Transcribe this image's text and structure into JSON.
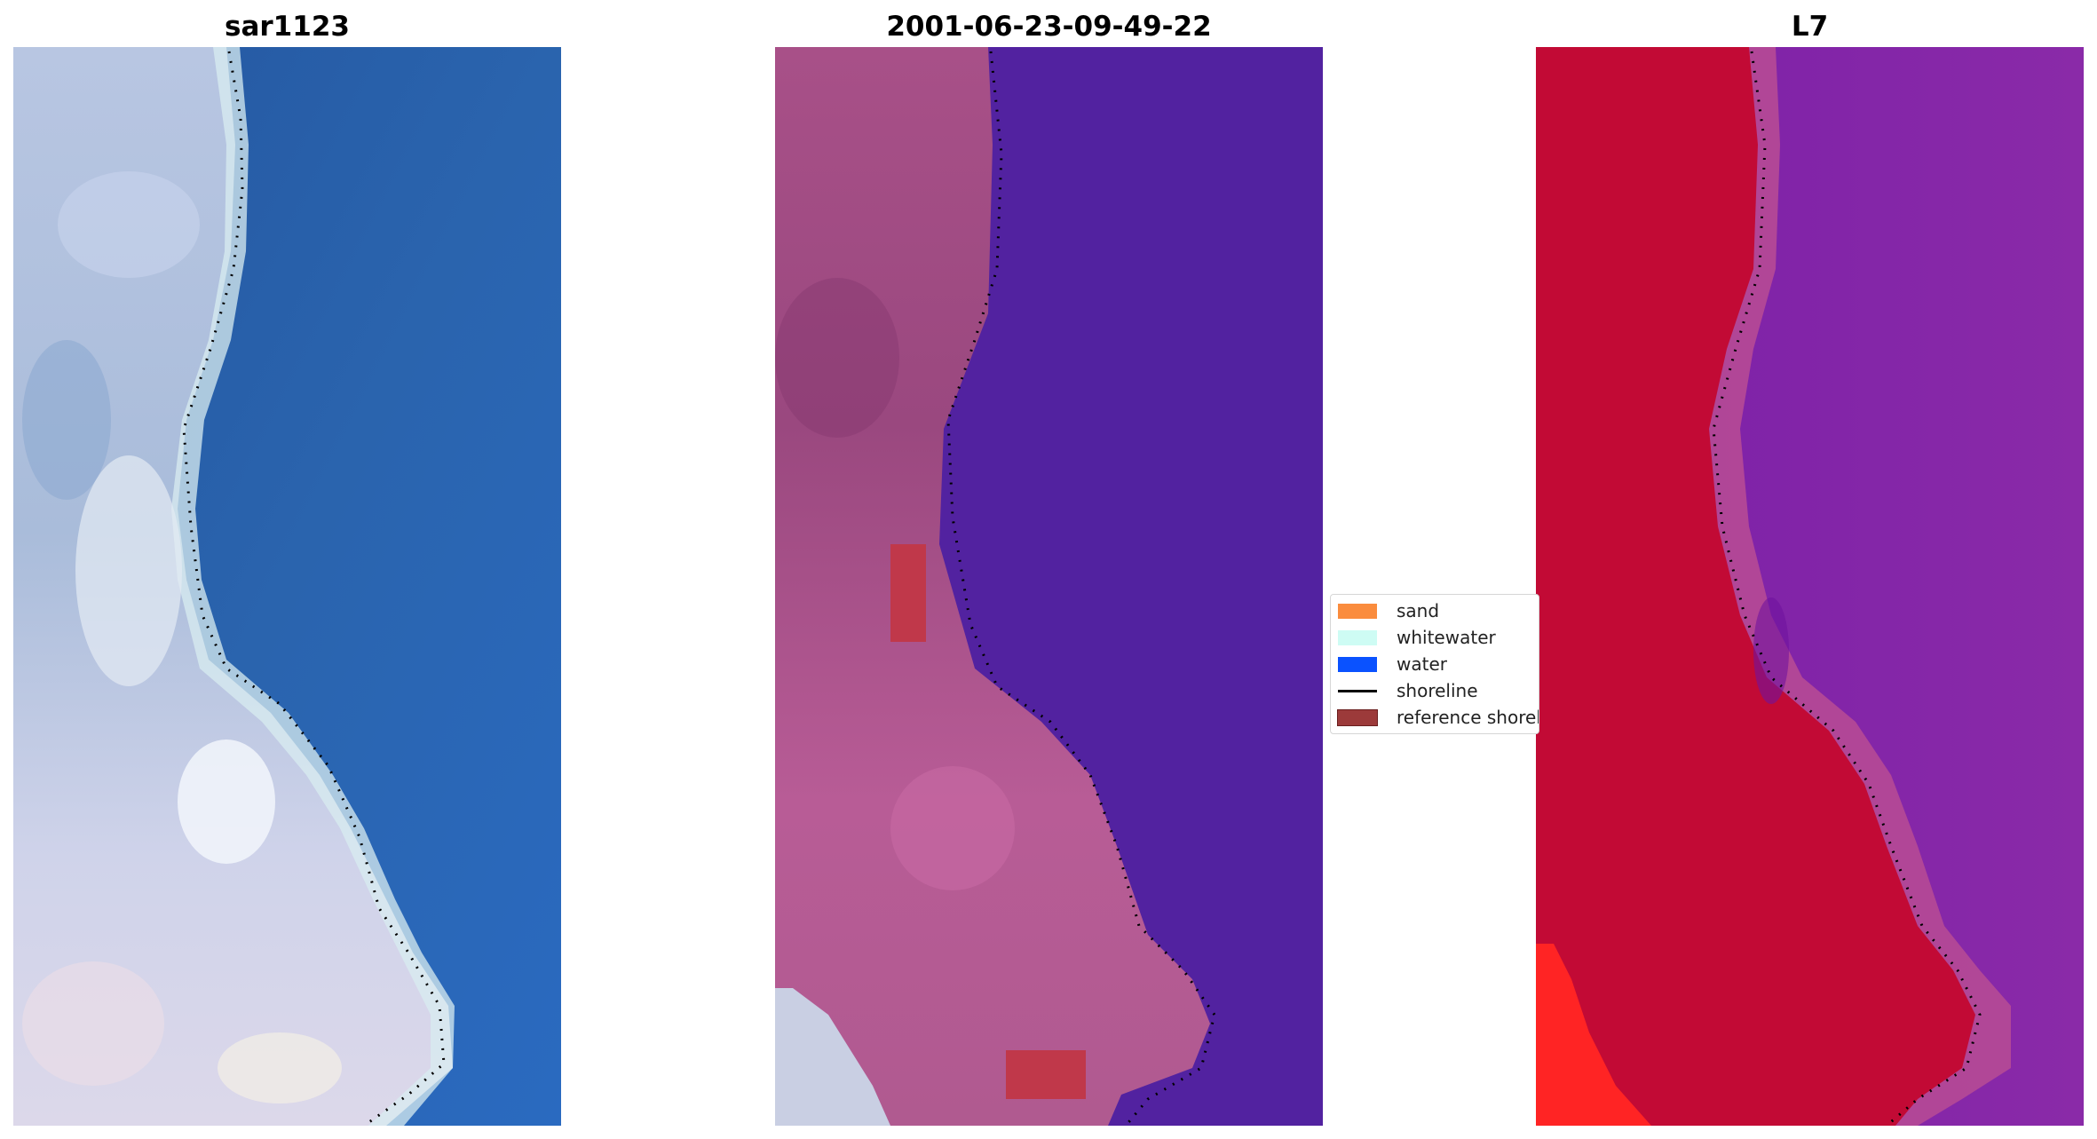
{
  "panels": [
    {
      "title": "sar1123"
    },
    {
      "title": "2001-06-23-09-49-22"
    },
    {
      "title": "L7"
    }
  ],
  "legend": {
    "placement": "center, between panel 2 and panel 3",
    "items": [
      {
        "label": "sand",
        "color": "#fa8c3d"
      },
      {
        "label": "whitewater",
        "color": "#cefcf4"
      },
      {
        "label": "water",
        "color": "#0a52ff"
      },
      {
        "label": "shoreline",
        "color": "#000000",
        "type": "line"
      },
      {
        "label": "reference shoreline",
        "color": "#9c3a3a"
      }
    ]
  },
  "colors": {
    "rgb_water": "#2a62ad",
    "rgb_land": "#c6cde6",
    "class_water": "#5222a0",
    "class_land": "#b55a92",
    "class_reference": "#b83a50",
    "ndwi_land": "#c20a35",
    "ndwi_water": "#7a1fa8",
    "ndwi_hot": "#ff2222"
  }
}
